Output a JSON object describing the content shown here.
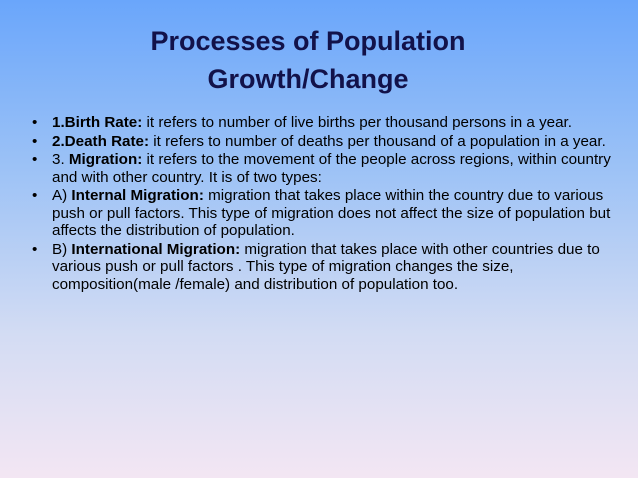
{
  "title": "Processes of Population Growth/Change",
  "bullets": [
    [
      {
        "text": "1.Birth Rate:",
        "bold": true
      },
      {
        "text": " it refers to number of live births per thousand persons in a year.",
        "bold": false
      }
    ],
    [
      {
        "text": "2.Death Rate:",
        "bold": true
      },
      {
        "text": " it refers to number of deaths per thousand of a population in a year.",
        "bold": false
      }
    ],
    [
      {
        "text": "3. ",
        "bold": false
      },
      {
        "text": "Migration:",
        "bold": true
      },
      {
        "text": " it refers to the movement of the people across regions, within country and with other country. It is of two types:",
        "bold": false
      }
    ],
    [
      {
        "text": "A) ",
        "bold": false
      },
      {
        "text": "Internal Migration:",
        "bold": true
      },
      {
        "text": " migration that takes place within the country due to various push or pull factors. This type of migration does not affect the size of population but affects the distribution of population.",
        "bold": false
      }
    ],
    [
      {
        "text": "B) ",
        "bold": false
      },
      {
        "text": "International Migration:",
        "bold": true
      },
      {
        "text": " migration that takes place with other countries due to various push or pull factors . This type of migration changes the size, composition(male /female) and distribution of population too.",
        "bold": false
      }
    ]
  ]
}
